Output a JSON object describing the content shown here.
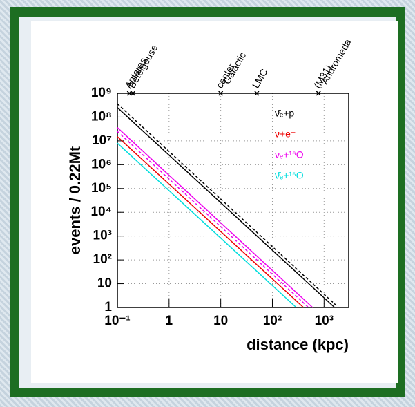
{
  "chart_data": {
    "type": "line",
    "ylabel": "events / 0.22Mt",
    "xlabel": "distance (kpc)",
    "log_x": true,
    "log_y": true,
    "grid": true,
    "xlim": [
      0.1,
      3000
    ],
    "ylim": [
      1,
      1000000000
    ],
    "xticks": [
      {
        "value": 0.1,
        "label": "10⁻¹"
      },
      1,
      10,
      {
        "value": 100,
        "label": "10²"
      },
      {
        "value": 1000,
        "label": "10³"
      }
    ],
    "yticks": [
      1,
      10,
      {
        "value": 100,
        "label": "10²"
      },
      {
        "value": 1000,
        "label": "10³"
      },
      {
        "value": 10000,
        "label": "10⁴"
      },
      {
        "value": 100000,
        "label": "10⁵"
      },
      {
        "value": 1000000,
        "label": "10⁶"
      },
      {
        "value": 10000000,
        "label": "10⁷"
      },
      {
        "value": 100000000,
        "label": "10⁸"
      },
      {
        "value": 1000000000,
        "label": "10⁹"
      }
    ],
    "legend": "top-right",
    "series": [
      {
        "name": "ν̄ₑ+p",
        "color": "#000000",
        "dash": false,
        "x": [
          0.1,
          1600
        ],
        "values": [
          250000000,
          1
        ]
      },
      {
        "color": "#000000",
        "dash": true,
        "x": [
          0.1,
          1900
        ],
        "values": [
          360000000,
          1
        ]
      },
      {
        "name": "ν+e⁻",
        "color": "#ee0000",
        "dash": false,
        "x": [
          0.1,
          400
        ],
        "values": [
          15000000,
          1
        ]
      },
      {
        "name": "νₑ+¹⁶O",
        "color": "#ee00ee",
        "dash": false,
        "x": [
          0.1,
          600
        ],
        "values": [
          36000000,
          1
        ]
      },
      {
        "color": "#ee00ee",
        "dash": true,
        "x": [
          0.1,
          500
        ],
        "values": [
          25000000,
          1
        ]
      },
      {
        "name": "ν̄ₑ+¹⁶O",
        "color": "#00dddd",
        "dash": false,
        "x": [
          0.1,
          290
        ],
        "values": [
          8000000,
          1
        ]
      }
    ],
    "markers": [
      {
        "lines": [
          "Antares"
        ],
        "x": 0.17
      },
      {
        "lines": [
          "Betelgeuse"
        ],
        "x": 0.2
      },
      {
        "lines": [
          "Galactic",
          "center"
        ],
        "x": 10
      },
      {
        "lines": [
          "LMC"
        ],
        "x": 50
      },
      {
        "lines": [
          "Andromeda",
          "(M31)"
        ],
        "x": 780
      }
    ]
  }
}
